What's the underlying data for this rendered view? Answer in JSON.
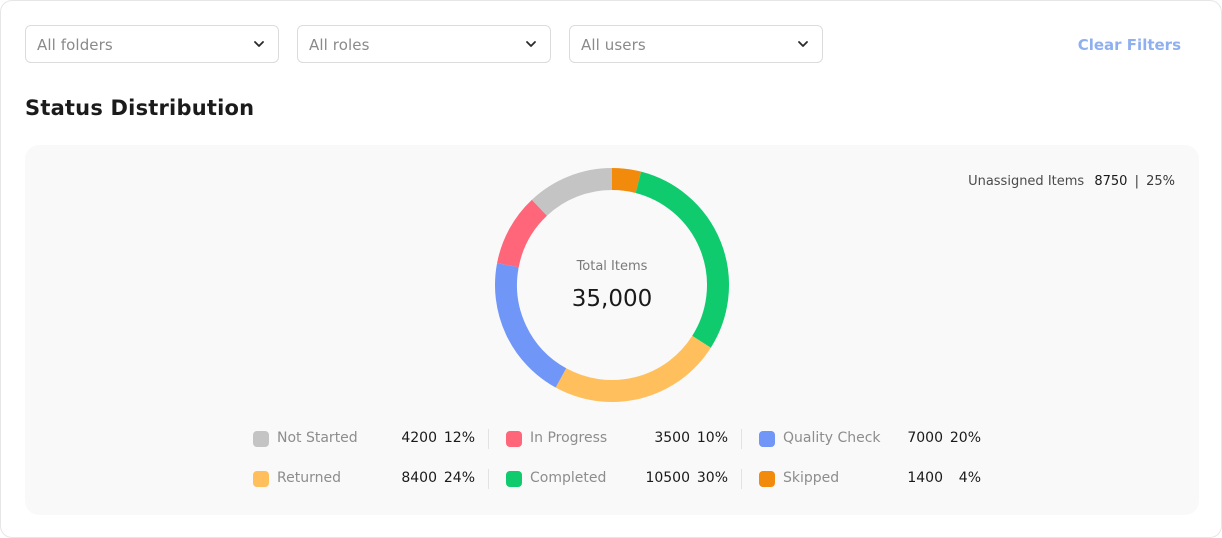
{
  "filters": {
    "folders": "All folders",
    "roles": "All roles",
    "users": "All users",
    "clear_label": "Clear Filters"
  },
  "section_title": "Status Distribution",
  "unassigned": {
    "label": "Unassigned Items",
    "count": "8750",
    "separator": "|",
    "percent": "25%"
  },
  "center": {
    "label": "Total Items",
    "value": "35,000"
  },
  "legend": [
    {
      "name": "Not Started",
      "count": "4200",
      "percent": "12%",
      "color": "#c4c4c4"
    },
    {
      "name": "In Progress",
      "count": "3500",
      "percent": "10%",
      "color": "#ff6679"
    },
    {
      "name": "Quality  Check",
      "count": "7000",
      "percent": "20%",
      "color": "#7096f8"
    },
    {
      "name": "Returned",
      "count": "8400",
      "percent": "24%",
      "color": "#ffbf5c"
    },
    {
      "name": "Completed",
      "count": "10500",
      "percent": "30%",
      "color": "#0fcb6e"
    },
    {
      "name": "Skipped",
      "count": "1400",
      "percent": "4%",
      "color": "#f28b0c"
    }
  ],
  "chart_data": {
    "type": "pie",
    "variant": "donut",
    "total": 35000,
    "series": [
      {
        "name": "Skipped",
        "value": 1400,
        "percent": 4,
        "color": "#f28b0c"
      },
      {
        "name": "Completed",
        "value": 10500,
        "percent": 30,
        "color": "#0fcb6e"
      },
      {
        "name": "Returned",
        "value": 8400,
        "percent": 24,
        "color": "#ffbf5c"
      },
      {
        "name": "Quality  Check",
        "value": 7000,
        "percent": 20,
        "color": "#7096f8"
      },
      {
        "name": "In Progress",
        "value": 3500,
        "percent": 10,
        "color": "#ff6679"
      },
      {
        "name": "Not Started",
        "value": 4200,
        "percent": 12,
        "color": "#c4c4c4"
      }
    ]
  }
}
